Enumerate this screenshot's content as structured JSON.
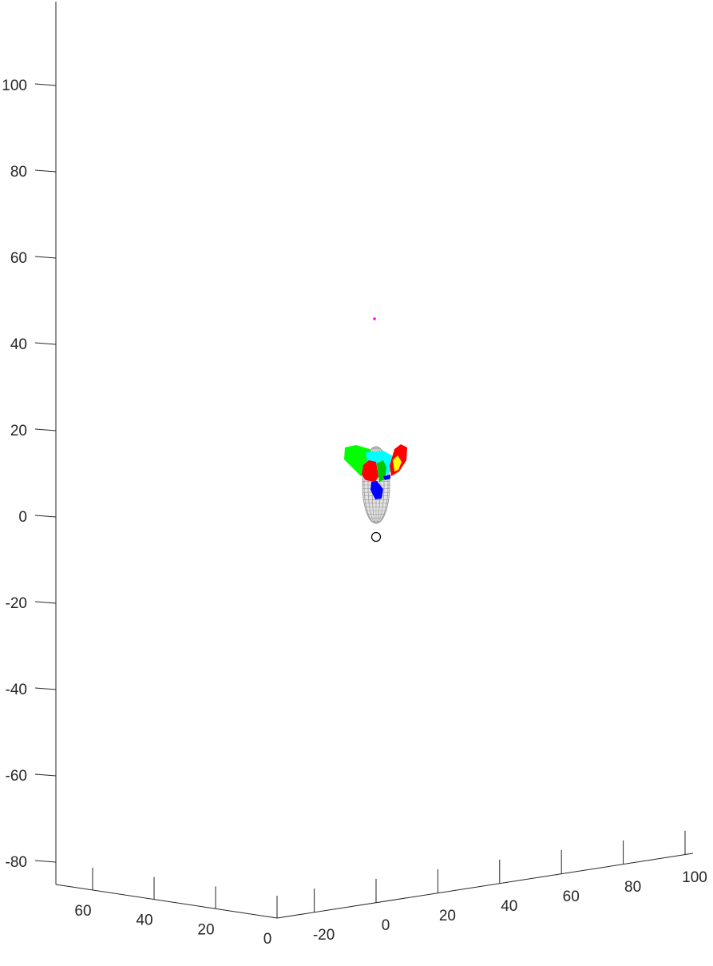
{
  "chart_data": {
    "type": "3d-scatter-surface",
    "title": "",
    "xlabel": "",
    "ylabel": "",
    "zlabel": "",
    "grid": false,
    "z_axis": {
      "ticks": [
        100,
        80,
        60,
        40,
        20,
        0,
        -20,
        -40,
        -60,
        -80
      ],
      "range": [
        -85,
        115
      ]
    },
    "depth_axis": {
      "ticks": [
        60,
        40,
        20,
        0
      ],
      "range": [
        0,
        72
      ]
    },
    "horizontal_axis": {
      "ticks": [
        -20,
        0,
        20,
        40,
        60,
        80,
        100
      ],
      "range": [
        -30,
        100
      ]
    },
    "objects": [
      {
        "name": "ellipsoid-mesh",
        "kind": "surface",
        "color": "#c8c8c8",
        "z_center": 7,
        "z_half_height": 9
      },
      {
        "name": "marker-circle",
        "kind": "point",
        "color": "#000000",
        "z": -5
      },
      {
        "name": "marker-magenta",
        "kind": "point",
        "color": "#ff00ff",
        "z": 46
      }
    ],
    "colors": {
      "green": "#00ff00",
      "red": "#ff0000",
      "blue": "#0000ff",
      "cyan": "#00ffff",
      "yellow": "#ffff00",
      "mesh": "#9a9a9a"
    }
  }
}
